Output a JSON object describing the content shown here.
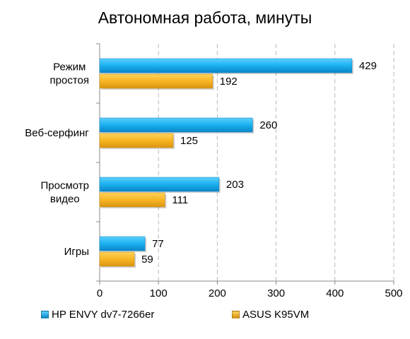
{
  "chart_data": {
    "type": "bar",
    "orientation": "horizontal",
    "title": "Автономная работа, минуты",
    "categories": [
      "Режим\nпростоя",
      "Веб-серфинг",
      "Просмотр\nвидео",
      "Игры"
    ],
    "series": [
      {
        "name": "HP ENVY dv7-7266er",
        "color": "#1aa8e8",
        "values": [
          429,
          260,
          203,
          77
        ]
      },
      {
        "name": "ASUS K95VM",
        "color": "#f5b21e",
        "values": [
          192,
          125,
          111,
          59
        ]
      }
    ],
    "xlim": [
      0,
      500
    ],
    "xticks": [
      0,
      100,
      200,
      300,
      400,
      500
    ],
    "grid": true,
    "legend_position": "bottom"
  }
}
